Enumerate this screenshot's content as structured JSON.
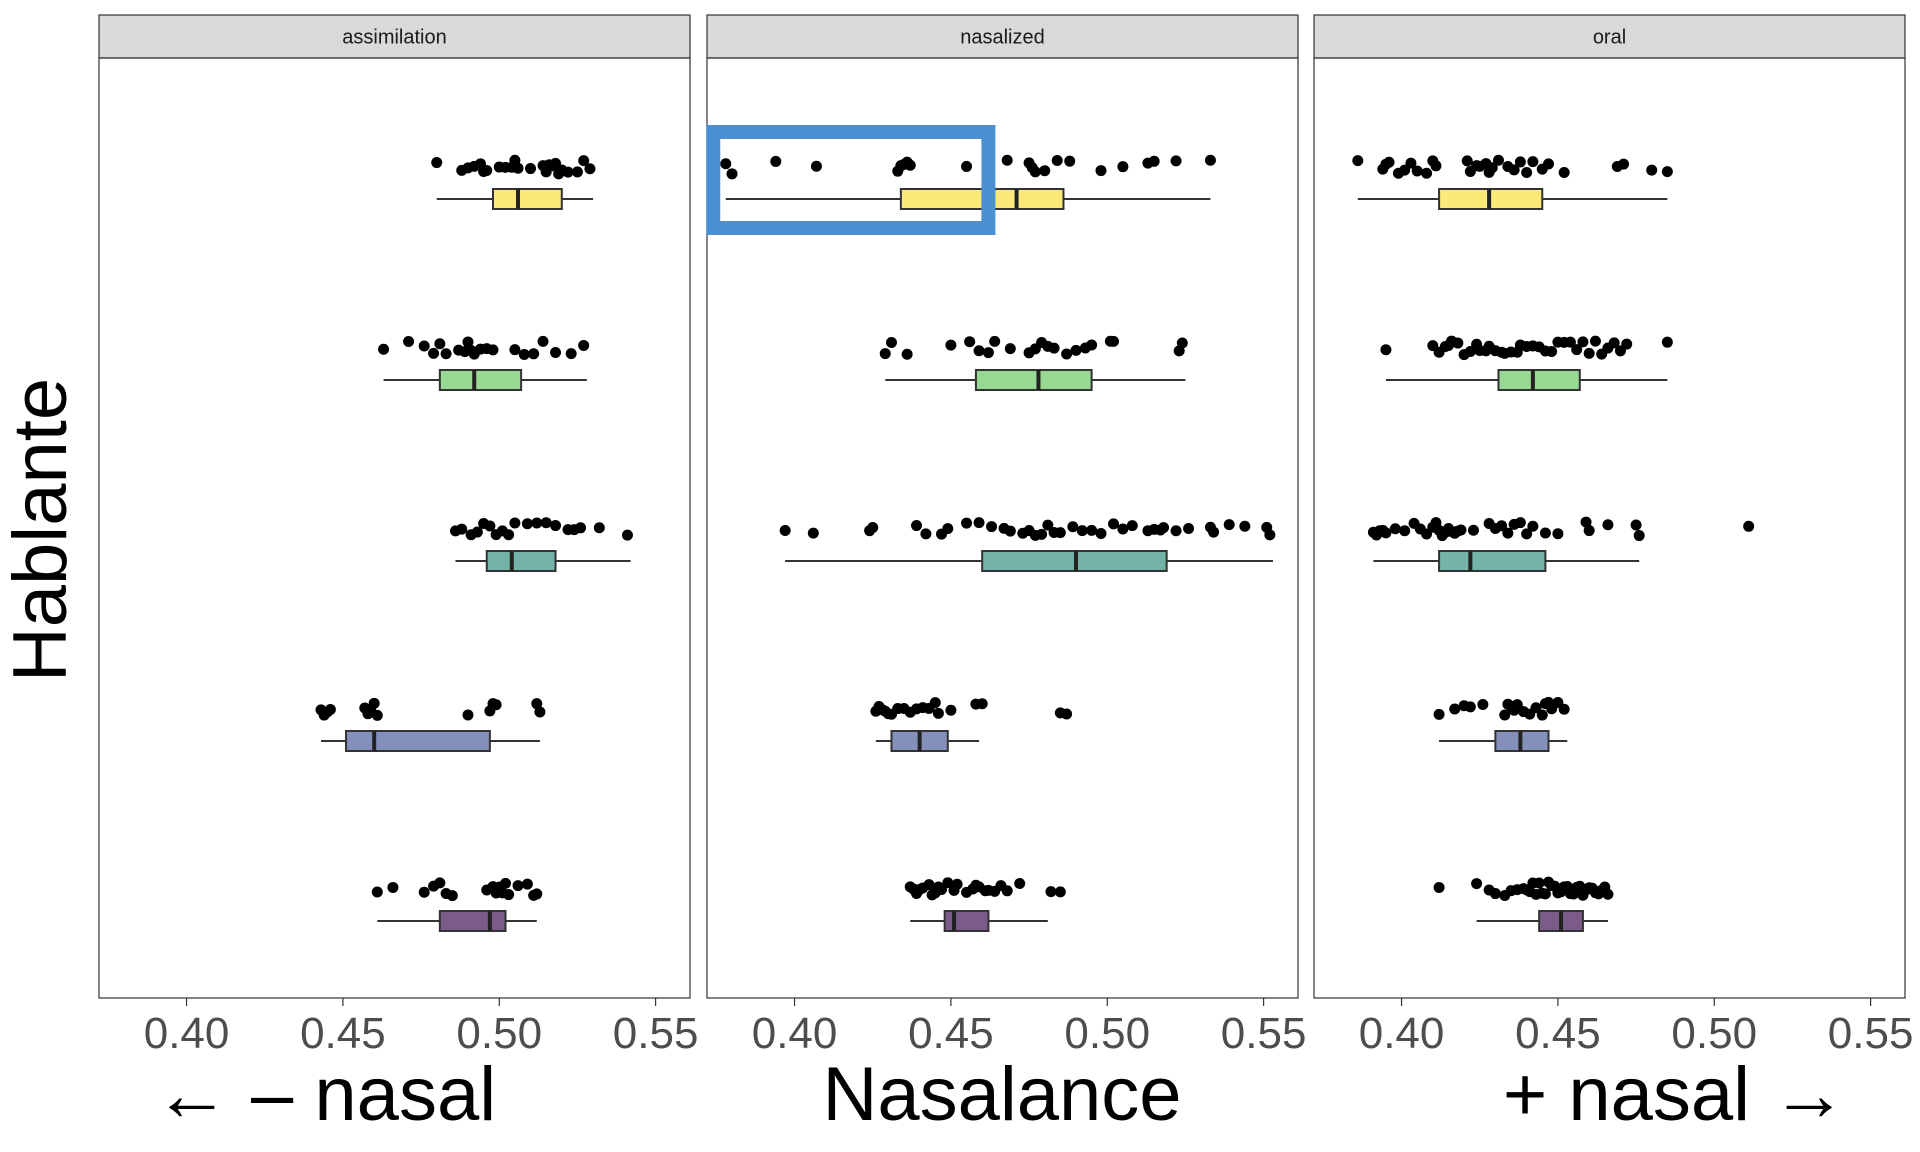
{
  "chart_data": {
    "type": "box",
    "orientation": "horizontal",
    "xlabel": "Nasalance",
    "xlabel_left": "← – nasal",
    "xlabel_right": "+ nasal →",
    "ylabel": "Hablante",
    "xlim": [
      0.372,
      0.561
    ],
    "xticks": [
      "0.40",
      "0.45",
      "0.50",
      "0.55"
    ],
    "xtick_values": [
      0.4,
      0.45,
      0.5,
      0.55
    ],
    "grid": false,
    "legend": "none",
    "speaker_colors": [
      "#FBE97A",
      "#97D993",
      "#74B3A8",
      "#8490BA",
      "#7A5B8A"
    ],
    "highlight": {
      "facet": "nasalized",
      "x_range": [
        0.374,
        0.462
      ],
      "speaker_row": 0,
      "color": "#4A90D2"
    },
    "facets": [
      {
        "name": "assimilation",
        "speakers": [
          {
            "box": {
              "min": 0.48,
              "q1": 0.498,
              "median": 0.506,
              "q3": 0.52,
              "max": 0.53
            },
            "points": [
              0.48,
              0.488,
              0.49,
              0.492,
              0.494,
              0.495,
              0.496,
              0.5,
              0.502,
              0.504,
              0.505,
              0.506,
              0.51,
              0.514,
              0.515,
              0.516,
              0.517,
              0.518,
              0.519,
              0.52,
              0.522,
              0.525,
              0.527,
              0.529
            ]
          },
          {
            "box": {
              "min": 0.463,
              "q1": 0.481,
              "median": 0.492,
              "q3": 0.507,
              "max": 0.528
            },
            "points": [
              0.463,
              0.471,
              0.476,
              0.479,
              0.481,
              0.483,
              0.487,
              0.489,
              0.49,
              0.491,
              0.492,
              0.494,
              0.496,
              0.498,
              0.505,
              0.508,
              0.511,
              0.514,
              0.518,
              0.523,
              0.527
            ]
          },
          {
            "box": {
              "min": 0.486,
              "q1": 0.496,
              "median": 0.504,
              "q3": 0.518,
              "max": 0.542
            },
            "points": [
              0.486,
              0.488,
              0.491,
              0.493,
              0.495,
              0.497,
              0.499,
              0.501,
              0.503,
              0.505,
              0.509,
              0.512,
              0.515,
              0.518,
              0.522,
              0.524,
              0.526,
              0.532,
              0.541
            ]
          },
          {
            "box": {
              "min": 0.443,
              "q1": 0.451,
              "median": 0.46,
              "q3": 0.497,
              "max": 0.513
            },
            "points": [
              0.443,
              0.444,
              0.445,
              0.446,
              0.457,
              0.458,
              0.459,
              0.46,
              0.461,
              0.49,
              0.497,
              0.498,
              0.499,
              0.512,
              0.513
            ]
          },
          {
            "box": {
              "min": 0.461,
              "q1": 0.481,
              "median": 0.497,
              "q3": 0.502,
              "max": 0.512
            },
            "points": [
              0.461,
              0.466,
              0.476,
              0.479,
              0.481,
              0.483,
              0.485,
              0.496,
              0.498,
              0.499,
              0.5,
              0.501,
              0.502,
              0.503,
              0.506,
              0.509,
              0.511,
              0.512
            ]
          }
        ]
      },
      {
        "name": "nasalized",
        "speakers": [
          {
            "box": {
              "min": 0.378,
              "q1": 0.434,
              "median": 0.471,
              "q3": 0.486,
              "max": 0.533
            },
            "points": [
              0.378,
              0.38,
              0.394,
              0.407,
              0.433,
              0.434,
              0.435,
              0.436,
              0.437,
              0.455,
              0.468,
              0.475,
              0.476,
              0.477,
              0.48,
              0.484,
              0.488,
              0.498,
              0.505,
              0.513,
              0.515,
              0.522,
              0.533
            ]
          },
          {
            "box": {
              "min": 0.429,
              "q1": 0.458,
              "median": 0.478,
              "q3": 0.495,
              "max": 0.525
            },
            "points": [
              0.429,
              0.431,
              0.436,
              0.45,
              0.456,
              0.459,
              0.462,
              0.464,
              0.469,
              0.475,
              0.477,
              0.479,
              0.481,
              0.483,
              0.487,
              0.49,
              0.493,
              0.495,
              0.501,
              0.502,
              0.523,
              0.524
            ]
          },
          {
            "box": {
              "min": 0.397,
              "q1": 0.46,
              "median": 0.49,
              "q3": 0.519,
              "max": 0.553
            },
            "points": [
              0.397,
              0.406,
              0.424,
              0.425,
              0.439,
              0.442,
              0.447,
              0.449,
              0.455,
              0.459,
              0.463,
              0.467,
              0.469,
              0.473,
              0.475,
              0.477,
              0.479,
              0.481,
              0.483,
              0.485,
              0.489,
              0.492,
              0.495,
              0.498,
              0.502,
              0.505,
              0.508,
              0.513,
              0.515,
              0.517,
              0.518,
              0.522,
              0.526,
              0.533,
              0.534,
              0.539,
              0.544,
              0.551,
              0.552
            ]
          },
          {
            "box": {
              "min": 0.426,
              "q1": 0.431,
              "median": 0.44,
              "q3": 0.449,
              "max": 0.459
            },
            "points": [
              0.426,
              0.427,
              0.428,
              0.429,
              0.43,
              0.431,
              0.433,
              0.435,
              0.437,
              0.439,
              0.441,
              0.443,
              0.445,
              0.446,
              0.45,
              0.458,
              0.46,
              0.485,
              0.487
            ]
          },
          {
            "box": {
              "min": 0.437,
              "q1": 0.448,
              "median": 0.451,
              "q3": 0.462,
              "max": 0.481
            },
            "points": [
              0.437,
              0.438,
              0.439,
              0.44,
              0.441,
              0.443,
              0.444,
              0.445,
              0.446,
              0.447,
              0.449,
              0.451,
              0.452,
              0.455,
              0.457,
              0.458,
              0.459,
              0.461,
              0.462,
              0.464,
              0.466,
              0.468,
              0.472,
              0.482,
              0.485
            ]
          }
        ]
      },
      {
        "name": "oral",
        "speakers": [
          {
            "box": {
              "min": 0.386,
              "q1": 0.412,
              "median": 0.428,
              "q3": 0.445,
              "max": 0.485
            },
            "points": [
              0.386,
              0.394,
              0.395,
              0.396,
              0.399,
              0.401,
              0.403,
              0.405,
              0.408,
              0.41,
              0.411,
              0.421,
              0.422,
              0.424,
              0.425,
              0.427,
              0.428,
              0.429,
              0.431,
              0.434,
              0.436,
              0.438,
              0.44,
              0.442,
              0.445,
              0.447,
              0.452,
              0.469,
              0.471,
              0.48,
              0.485
            ]
          },
          {
            "box": {
              "min": 0.395,
              "q1": 0.431,
              "median": 0.442,
              "q3": 0.457,
              "max": 0.485
            },
            "points": [
              0.395,
              0.41,
              0.412,
              0.414,
              0.415,
              0.416,
              0.418,
              0.42,
              0.422,
              0.424,
              0.425,
              0.427,
              0.428,
              0.43,
              0.432,
              0.433,
              0.435,
              0.437,
              0.438,
              0.44,
              0.442,
              0.444,
              0.446,
              0.448,
              0.45,
              0.452,
              0.454,
              0.456,
              0.458,
              0.46,
              0.462,
              0.464,
              0.466,
              0.468,
              0.47,
              0.472,
              0.485
            ]
          },
          {
            "box": {
              "min": 0.391,
              "q1": 0.412,
              "median": 0.422,
              "q3": 0.446,
              "max": 0.476
            },
            "points": [
              0.391,
              0.392,
              0.393,
              0.394,
              0.395,
              0.398,
              0.401,
              0.404,
              0.406,
              0.408,
              0.41,
              0.411,
              0.412,
              0.413,
              0.414,
              0.415,
              0.416,
              0.417,
              0.418,
              0.419,
              0.423,
              0.428,
              0.43,
              0.432,
              0.434,
              0.436,
              0.438,
              0.44,
              0.442,
              0.446,
              0.45,
              0.459,
              0.46,
              0.466,
              0.475,
              0.476,
              0.511
            ]
          },
          {
            "box": {
              "min": 0.412,
              "q1": 0.43,
              "median": 0.438,
              "q3": 0.447,
              "max": 0.453
            },
            "points": [
              0.412,
              0.417,
              0.42,
              0.422,
              0.426,
              0.433,
              0.434,
              0.435,
              0.436,
              0.437,
              0.439,
              0.441,
              0.443,
              0.445,
              0.446,
              0.447,
              0.448,
              0.45,
              0.452
            ]
          },
          {
            "box": {
              "min": 0.424,
              "q1": 0.444,
              "median": 0.451,
              "q3": 0.458,
              "max": 0.466
            },
            "points": [
              0.412,
              0.424,
              0.428,
              0.43,
              0.433,
              0.435,
              0.437,
              0.439,
              0.44,
              0.441,
              0.442,
              0.443,
              0.444,
              0.445,
              0.446,
              0.447,
              0.448,
              0.449,
              0.45,
              0.451,
              0.452,
              0.453,
              0.454,
              0.455,
              0.456,
              0.457,
              0.458,
              0.459,
              0.46,
              0.461,
              0.462,
              0.463,
              0.464,
              0.465,
              0.466
            ]
          }
        ]
      }
    ]
  }
}
